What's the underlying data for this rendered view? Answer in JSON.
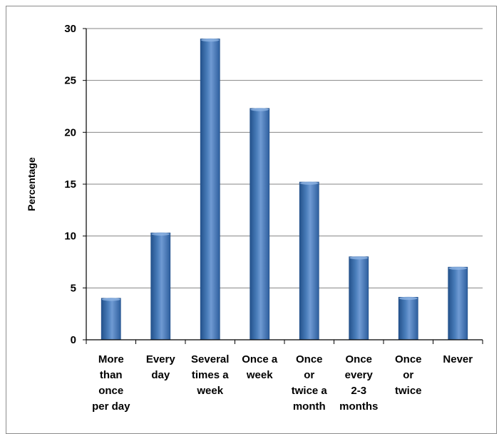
{
  "chart_data": {
    "type": "bar",
    "title": "",
    "xlabel": "",
    "ylabel": "Percentage",
    "categories": [
      [
        "More",
        "than",
        "once",
        "per day"
      ],
      [
        "Every",
        "day"
      ],
      [
        "Several",
        "times a",
        "week"
      ],
      [
        "Once a",
        "week"
      ],
      [
        "Once",
        "or",
        "twice a",
        "month"
      ],
      [
        "Once",
        "every",
        "2-3",
        "months"
      ],
      [
        "Once",
        "or",
        "twice"
      ],
      [
        "Never"
      ]
    ],
    "values": [
      4,
      10.3,
      29,
      22.3,
      15.2,
      8,
      4.1,
      7
    ],
    "ylim": [
      0,
      30
    ],
    "yticks": [
      "0",
      "5",
      "10",
      "15",
      "20",
      "25",
      "30"
    ],
    "grid": true,
    "legend": "none",
    "colors": {
      "bar_light": "#8fb4e3",
      "bar_mid": "#4a7ebb",
      "bar_dark": "#24528c",
      "gridline": "#868686",
      "axis": "#000000"
    }
  }
}
